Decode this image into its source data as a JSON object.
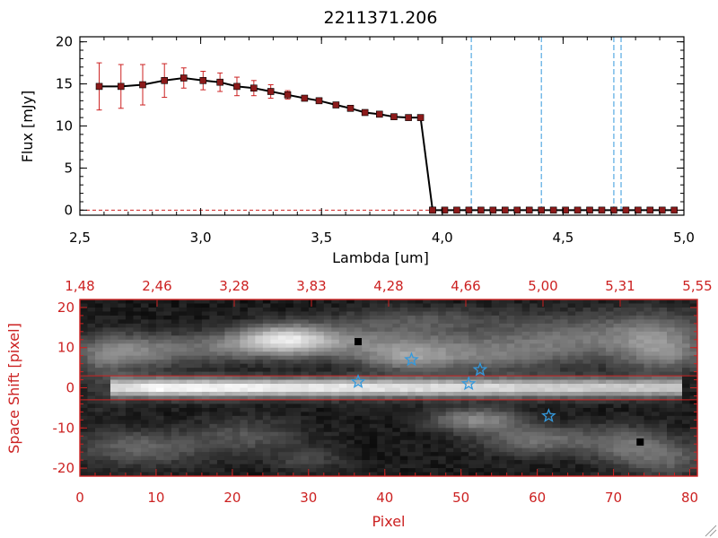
{
  "chart_data": [
    {
      "type": "line",
      "title": "2211371.206",
      "xlabel": "Lambda [um]",
      "ylabel": "Flux [mJy]",
      "xlim": [
        2.5,
        5.0
      ],
      "ylim": [
        -0.6,
        20.6
      ],
      "x_ticks": [
        "2.5",
        "3.0",
        "3.5",
        "4.0",
        "4.5",
        "5.0"
      ],
      "y_ticks": [
        "0",
        "5",
        "10",
        "15",
        "20"
      ],
      "colors": {
        "line": "#000000",
        "marker": "#8b1a1a",
        "error_bar": "#cc2222",
        "reference_line": "#3399dd"
      },
      "series": [
        {
          "x": [
            2.58,
            2.67,
            2.76,
            2.85,
            2.93,
            3.01,
            3.08,
            3.15,
            3.22,
            3.29,
            3.36,
            3.43,
            3.49,
            3.56,
            3.62,
            3.68,
            3.74,
            3.8,
            3.86,
            3.91,
            3.96
          ],
          "y": [
            14.7,
            14.7,
            14.9,
            15.4,
            15.7,
            15.4,
            15.2,
            14.7,
            14.5,
            14.1,
            13.7,
            13.3,
            13.0,
            12.5,
            12.1,
            11.6,
            11.4,
            11.1,
            11.0,
            11.0,
            0.0
          ],
          "error": [
            2.8,
            2.6,
            2.4,
            2.0,
            1.2,
            1.1,
            1.1,
            1.1,
            0.9,
            0.8,
            0.5,
            0,
            0,
            0,
            0,
            0,
            0,
            0,
            0,
            0,
            0
          ]
        },
        {
          "x": [
            3.96,
            4.01,
            4.06,
            4.11,
            4.16,
            4.21,
            4.26,
            4.31,
            4.36,
            4.41,
            4.46,
            4.51,
            4.56,
            4.61,
            4.66,
            4.71,
            4.76,
            4.81,
            4.86,
            4.91,
            4.96
          ],
          "y": [
            0,
            0,
            0,
            0,
            0,
            0,
            0,
            0,
            0,
            0,
            0,
            0,
            0,
            0,
            0,
            0,
            0,
            0,
            0,
            0,
            0
          ]
        }
      ],
      "vertical_lines_x": [
        4.12,
        4.41,
        4.71,
        4.74
      ],
      "horizontal_line_y": 0
    },
    {
      "type": "heatmap",
      "xlabel": "Pixel",
      "ylabel": "Space Shift [pixel]",
      "xlim": [
        0,
        81
      ],
      "ylim": [
        -22,
        22
      ],
      "x_ticks": [
        "0",
        "10",
        "20",
        "30",
        "40",
        "50",
        "60",
        "70",
        "80"
      ],
      "y_ticks": [
        "-20",
        "-10",
        "0",
        "10",
        "20"
      ],
      "top_axis_ticks": [
        "1.48",
        "2.46",
        "3.28",
        "3.83",
        "4.28",
        "4.66",
        "5.00",
        "5.31",
        "5.55"
      ],
      "colors": {
        "axis": "#cc2222",
        "markers": "#3399dd",
        "band_lines": "#cc2222"
      },
      "band_lines_y": [
        3,
        -3
      ],
      "star_markers": [
        {
          "x": 36.5,
          "y": 1.5
        },
        {
          "x": 43.5,
          "y": 7.0
        },
        {
          "x": 51.0,
          "y": 1.0
        },
        {
          "x": 52.5,
          "y": 4.5
        },
        {
          "x": 61.5,
          "y": -7.0
        }
      ],
      "bright_blobs": [
        {
          "x": 6,
          "y": 9,
          "sx": 5,
          "sy": 3,
          "v": 0.4
        },
        {
          "x": 18,
          "y": 10,
          "sx": 5,
          "sy": 2.5,
          "v": 0.25
        },
        {
          "x": 27,
          "y": 12,
          "sx": 4.5,
          "sy": 2.5,
          "v": 0.75
        },
        {
          "x": 40,
          "y": 11,
          "sx": 8,
          "sy": 3,
          "v": 0.35
        },
        {
          "x": 43,
          "y": 7,
          "sx": 4,
          "sy": 2,
          "v": 0.3
        },
        {
          "x": 53,
          "y": 8,
          "sx": 6,
          "sy": 3,
          "v": 0.25
        },
        {
          "x": 63,
          "y": 12,
          "sx": 6,
          "sy": 4,
          "v": 0.28
        },
        {
          "x": 75,
          "y": 13,
          "sx": 5,
          "sy": 4,
          "v": 0.35
        },
        {
          "x": 77,
          "y": 8,
          "sx": 4,
          "sy": 3,
          "v": 0.25
        },
        {
          "x": 45,
          "y": 17,
          "sx": 8,
          "sy": 2,
          "v": 0.18
        },
        {
          "x": 52,
          "y": -8,
          "sx": 4,
          "sy": 2,
          "v": 0.4
        },
        {
          "x": 60,
          "y": -13,
          "sx": 5,
          "sy": 2.5,
          "v": 0.3
        },
        {
          "x": 8,
          "y": -15,
          "sx": 6,
          "sy": 3,
          "v": 0.25
        },
        {
          "x": 22,
          "y": -12,
          "sx": 5,
          "sy": 3,
          "v": 0.18
        },
        {
          "x": 72,
          "y": -14,
          "sx": 4,
          "sy": 3,
          "v": 0.28
        },
        {
          "x": 77,
          "y": -18,
          "sx": 4,
          "sy": 3,
          "v": 0.22
        },
        {
          "x": 30,
          "y": -18,
          "sx": 3,
          "sy": 2,
          "v": 0.15
        },
        {
          "x": 3,
          "y": 2,
          "sx": 2,
          "sy": 5,
          "v": 0.12
        }
      ],
      "dark_spots": [
        {
          "x": 36.5,
          "y": 11.5
        },
        {
          "x": 73.5,
          "y": -13.5
        }
      ]
    }
  ]
}
